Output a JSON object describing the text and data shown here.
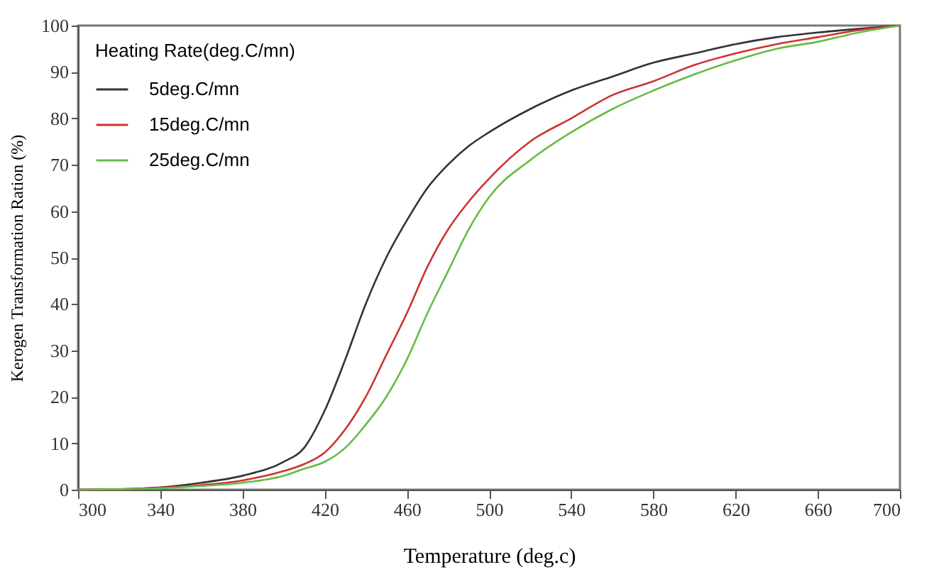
{
  "chart_data": {
    "type": "line",
    "xlabel": "Temperature (deg.c)",
    "ylabel": "Kerogen Transformation Ration (%)",
    "legend_title": "Heating Rate(deg.C/mn)",
    "x": [
      300,
      320,
      340,
      360,
      380,
      400,
      410,
      420,
      430,
      440,
      450,
      460,
      470,
      480,
      490,
      500,
      520,
      540,
      560,
      580,
      600,
      620,
      640,
      660,
      680,
      700
    ],
    "series": [
      {
        "name": "5deg.C/mn",
        "color": "#333333",
        "values": [
          0,
          0.1,
          0.5,
          1.5,
          3,
          6,
          9,
          17,
          28,
          40,
          50,
          58,
          65,
          70,
          74,
          77,
          82,
          86,
          89,
          92,
          94,
          96,
          97.5,
          98.5,
          99.3,
          100
        ]
      },
      {
        "name": "15deg.C/mn",
        "color": "#cc3333",
        "values": [
          0,
          0.1,
          0.4,
          1,
          2,
          4,
          5.5,
          8,
          13,
          20,
          29,
          38,
          48,
          56,
          62,
          67,
          75,
          80,
          85,
          88,
          91.5,
          94,
          96,
          97.5,
          99,
          100
        ]
      },
      {
        "name": "25deg.C/mn",
        "color": "#66bb44",
        "values": [
          0,
          0.1,
          0.3,
          0.8,
          1.5,
          3,
          4.5,
          6,
          9,
          14,
          20,
          28,
          38,
          47,
          56,
          63,
          71,
          77,
          82,
          86,
          89.5,
          92.5,
          95,
          96.5,
          98.5,
          100
        ]
      }
    ],
    "xlim": [
      300,
      700
    ],
    "ylim": [
      0,
      100
    ],
    "xticks": [
      300,
      340,
      380,
      420,
      460,
      500,
      540,
      580,
      620,
      660,
      700
    ],
    "yticks": [
      0,
      10,
      20,
      30,
      40,
      50,
      60,
      70,
      80,
      90,
      100
    ],
    "grid": false,
    "legend": "top left",
    "marker": "none",
    "line_style": "solid"
  }
}
